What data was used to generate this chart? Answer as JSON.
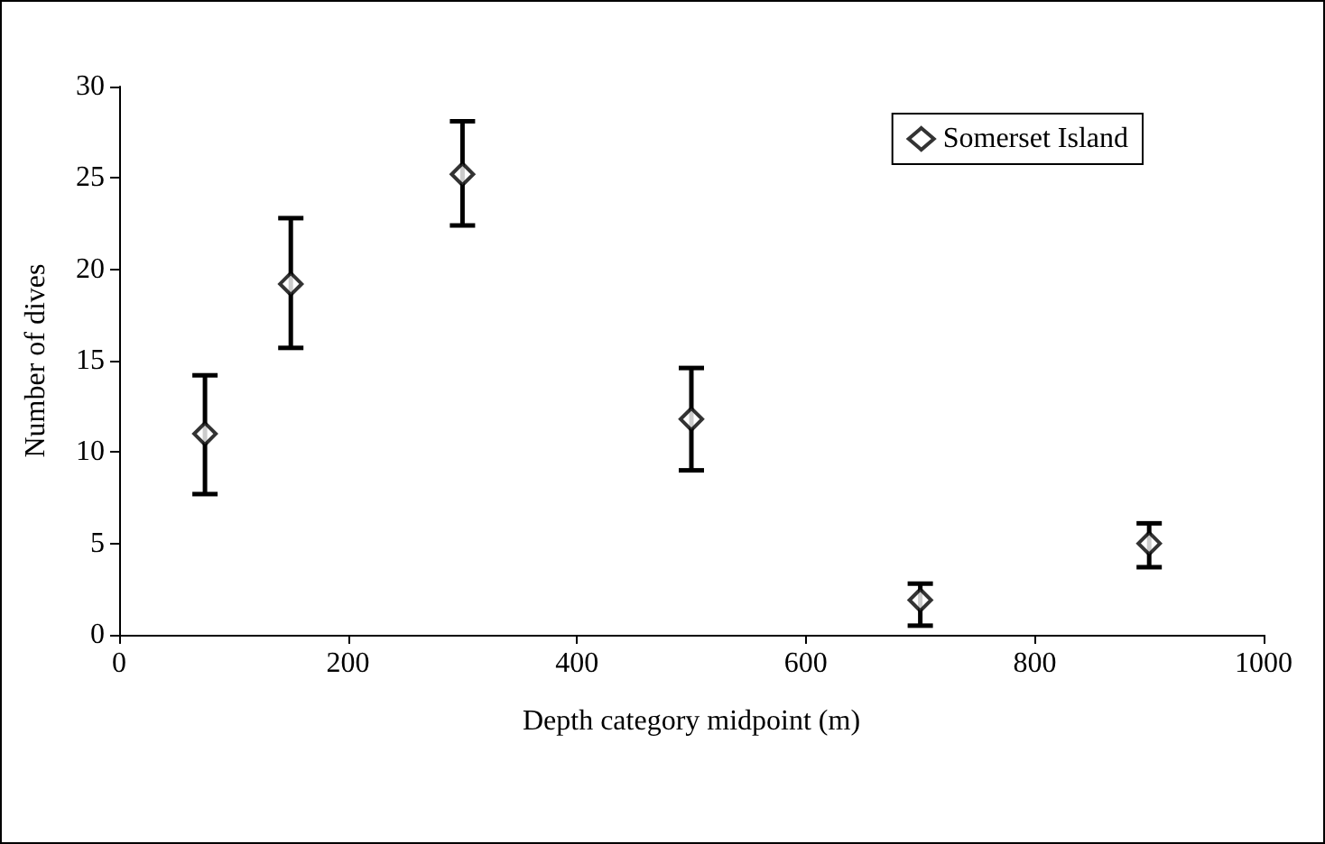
{
  "chart_data": {
    "type": "scatter",
    "xlabel": "Depth category midpoint (m)",
    "ylabel": "Number of dives",
    "x": [
      75,
      150,
      300,
      500,
      700,
      900
    ],
    "series": [
      {
        "name": "Somerset Island",
        "color": "#000000",
        "values": [
          11.0,
          19.2,
          25.2,
          11.8,
          1.9,
          5.0
        ],
        "errors": [
          [
            7.7,
            14.2
          ],
          [
            15.7,
            22.8
          ],
          [
            22.4,
            28.1
          ],
          [
            9.0,
            14.6
          ],
          [
            0.5,
            2.8
          ],
          [
            3.7,
            6.1
          ]
        ]
      }
    ],
    "marker": "diamond",
    "xlim": [
      0,
      1000
    ],
    "xticks": [
      0,
      200,
      400,
      600,
      800,
      1000
    ],
    "ylim": [
      0,
      30
    ],
    "yticks": [
      0,
      5,
      10,
      15,
      20,
      25,
      30
    ],
    "grid": false,
    "legend": "top right"
  }
}
